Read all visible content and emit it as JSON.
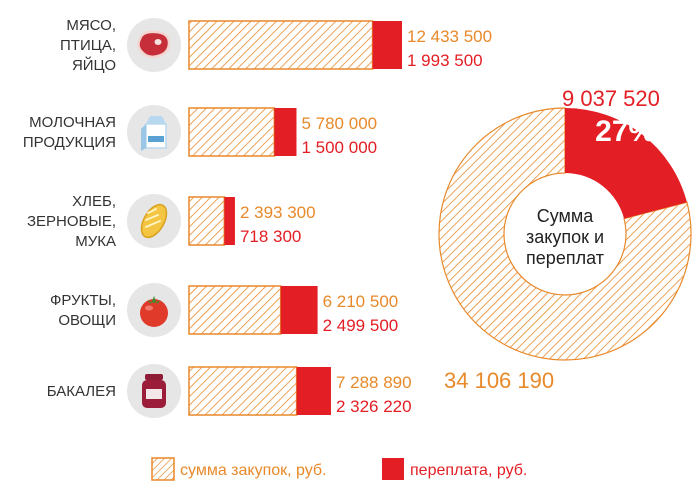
{
  "colors": {
    "purchase": "#e8892a",
    "overpay": "#e31e24",
    "icon_bg": "#e6e6e6"
  },
  "chart_data": [
    {
      "type": "bar",
      "stacked": true,
      "orientation": "horizontal",
      "categories": [
        {
          "lines": [
            "МЯСО,",
            "ПТИЦА,",
            "ЯЙЦО"
          ],
          "icon": "meat-icon"
        },
        {
          "lines": [
            "МОЛОЧНАЯ",
            "ПРОДУКЦИЯ"
          ],
          "icon": "milk-carton-icon"
        },
        {
          "lines": [
            "ХЛЕБ,",
            "ЗЕРНОВЫЕ,",
            "МУКА"
          ],
          "icon": "bread-icon"
        },
        {
          "lines": [
            "ФРУКТЫ,",
            "ОВОЩИ"
          ],
          "icon": "tomato-icon"
        },
        {
          "lines": [
            "БАКАЛЕЯ"
          ],
          "icon": "jar-icon"
        }
      ],
      "series": [
        {
          "name": "сумма закупок, руб.",
          "values": [
            12433500,
            5780000,
            2393300,
            6210500,
            7288890
          ],
          "labels": [
            "12 433 500",
            "5 780 000",
            "2 393 300",
            "6 210 500",
            "7 288 890"
          ]
        },
        {
          "name": "переплата, руб.",
          "values": [
            1993500,
            1500000,
            718300,
            2499500,
            2326220
          ],
          "labels": [
            "1 993 500",
            "1 500 000",
            "718 300",
            "2 499 500",
            "2 326 220"
          ]
        }
      ]
    },
    {
      "type": "pie",
      "donut": true,
      "center_label": [
        "Сумма",
        "закупок и",
        "переплат"
      ],
      "slices": [
        {
          "name": "сумма закупок, руб.",
          "value": 34106190,
          "label": "34 106 190"
        },
        {
          "name": "переплата, руб.",
          "value": 9037520,
          "label": "9 037 520",
          "percent_label": "27%"
        }
      ]
    }
  ],
  "legend": {
    "purchase_label": "сумма закупок, руб.",
    "overpay_label": "переплата, руб."
  }
}
